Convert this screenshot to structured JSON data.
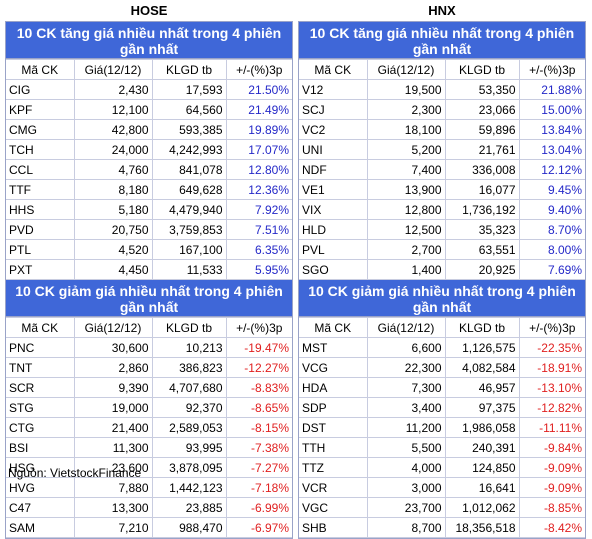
{
  "hose": {
    "title": "HOSE",
    "gainers_title": "10 CK tăng giá nhiều nhất trong 4 phiên gần nhất",
    "losers_title": "10 CK giảm giá nhiều nhất trong 4 phiên gần nhất",
    "columns": [
      "Mã CK",
      "Giá(12/12)",
      "KLGD tb",
      "+/-(%)3p"
    ],
    "gainers": [
      [
        "CIG",
        "2,430",
        "17,593",
        "21.50%"
      ],
      [
        "KPF",
        "12,100",
        "64,560",
        "21.49%"
      ],
      [
        "CMG",
        "42,800",
        "593,385",
        "19.89%"
      ],
      [
        "TCH",
        "24,000",
        "4,242,993",
        "17.07%"
      ],
      [
        "CCL",
        "4,760",
        "841,078",
        "12.80%"
      ],
      [
        "TTF",
        "8,180",
        "649,628",
        "12.36%"
      ],
      [
        "HHS",
        "5,180",
        "4,479,940",
        "7.92%"
      ],
      [
        "PVD",
        "20,750",
        "3,759,853",
        "7.51%"
      ],
      [
        "PTL",
        "4,520",
        "167,100",
        "6.35%"
      ],
      [
        "PXT",
        "4,450",
        "11,533",
        "5.95%"
      ]
    ],
    "losers": [
      [
        "PNC",
        "30,600",
        "10,213",
        "-19.47%"
      ],
      [
        "TNT",
        "2,860",
        "386,823",
        "-12.27%"
      ],
      [
        "SCR",
        "9,390",
        "4,707,680",
        "-8.83%"
      ],
      [
        "STG",
        "19,000",
        "92,370",
        "-8.65%"
      ],
      [
        "CTG",
        "21,400",
        "2,589,053",
        "-8.15%"
      ],
      [
        "BSI",
        "11,300",
        "93,995",
        "-7.38%"
      ],
      [
        "HSG",
        "23,600",
        "3,878,095",
        "-7.27%"
      ],
      [
        "HVG",
        "7,880",
        "1,442,123",
        "-7.18%"
      ],
      [
        "C47",
        "13,300",
        "23,885",
        "-6.99%"
      ],
      [
        "SAM",
        "7,210",
        "988,470",
        "-6.97%"
      ]
    ]
  },
  "hnx": {
    "title": "HNX",
    "gainers_title": "10 CK tăng giá nhiều nhất trong 4 phiên gần nhất",
    "losers_title": "10 CK giảm giá nhiều nhất trong 4 phiên gần nhất",
    "columns": [
      "Mã CK",
      "Giá(12/12)",
      "KLGD tb",
      "+/-(%)3p"
    ],
    "gainers": [
      [
        "V12",
        "19,500",
        "53,350",
        "21.88%"
      ],
      [
        "SCJ",
        "2,300",
        "23,066",
        "15.00%"
      ],
      [
        "VC2",
        "18,100",
        "59,896",
        "13.84%"
      ],
      [
        "UNI",
        "5,200",
        "21,761",
        "13.04%"
      ],
      [
        "NDF",
        "7,400",
        "336,008",
        "12.12%"
      ],
      [
        "VE1",
        "13,900",
        "16,077",
        "9.45%"
      ],
      [
        "VIX",
        "12,800",
        "1,736,192",
        "9.40%"
      ],
      [
        "HLD",
        "12,500",
        "35,323",
        "8.70%"
      ],
      [
        "PVL",
        "2,700",
        "63,551",
        "8.00%"
      ],
      [
        "SGO",
        "1,400",
        "20,925",
        "7.69%"
      ]
    ],
    "losers": [
      [
        "MST",
        "6,600",
        "1,126,575",
        "-22.35%"
      ],
      [
        "VCG",
        "22,300",
        "4,082,584",
        "-18.91%"
      ],
      [
        "HDA",
        "7,300",
        "46,957",
        "-13.10%"
      ],
      [
        "SDP",
        "3,400",
        "97,375",
        "-12.82%"
      ],
      [
        "DST",
        "11,200",
        "1,986,058",
        "-11.11%"
      ],
      [
        "TTH",
        "5,500",
        "240,391",
        "-9.84%"
      ],
      [
        "TTZ",
        "4,000",
        "124,850",
        "-9.09%"
      ],
      [
        "VCR",
        "3,000",
        "16,641",
        "-9.09%"
      ],
      [
        "VGC",
        "23,700",
        "1,012,062",
        "-8.85%"
      ],
      [
        "SHB",
        "8,700",
        "18,356,518",
        "-8.42%"
      ]
    ]
  },
  "source": "Nguồn: VietstockFinance",
  "colors": {
    "header_bg": "#3f67d8",
    "gain": "#2428c8",
    "loss": "#e02020"
  }
}
